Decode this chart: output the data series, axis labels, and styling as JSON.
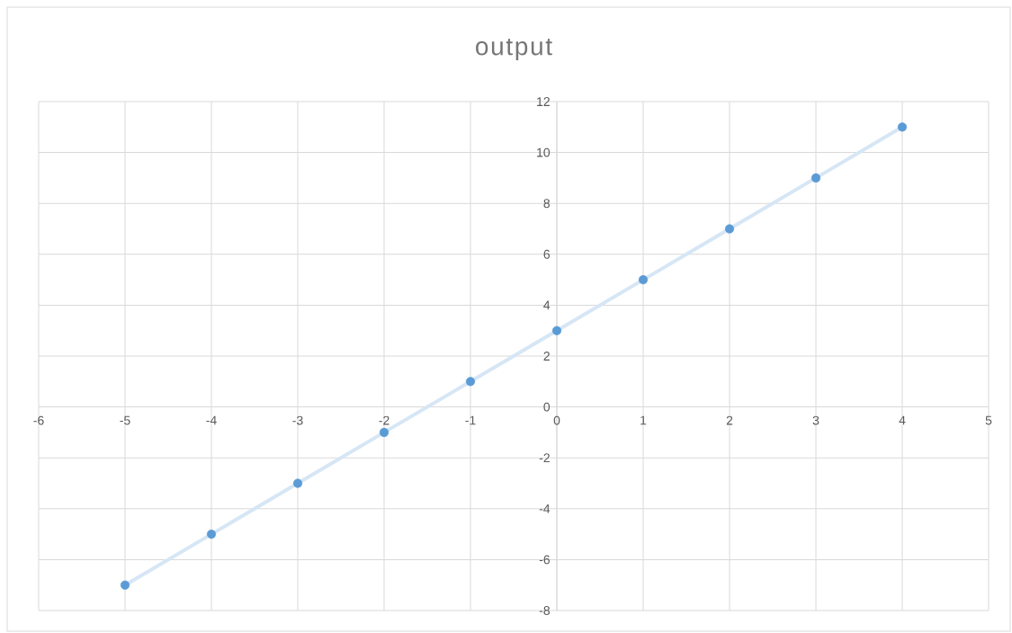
{
  "chart_data": {
    "type": "line",
    "title": "output",
    "x": [
      -5,
      -4,
      -3,
      -2,
      -1,
      0,
      1,
      2,
      3,
      4
    ],
    "series": [
      {
        "color": "#5b9bd5",
        "values": [
          -7,
          -5,
          -3,
          -1,
          1,
          3,
          5,
          7,
          9,
          11
        ]
      }
    ],
    "xlim": [
      -6,
      5
    ],
    "ylim": [
      -8,
      12
    ],
    "xticks": [
      -6,
      -5,
      -4,
      -3,
      -2,
      -1,
      0,
      1,
      2,
      3,
      4,
      5
    ],
    "yticks": [
      -8,
      -6,
      -4,
      -2,
      0,
      2,
      4,
      6,
      8,
      10,
      12
    ],
    "grid": true,
    "marker": "circle",
    "line_style": "solid"
  }
}
